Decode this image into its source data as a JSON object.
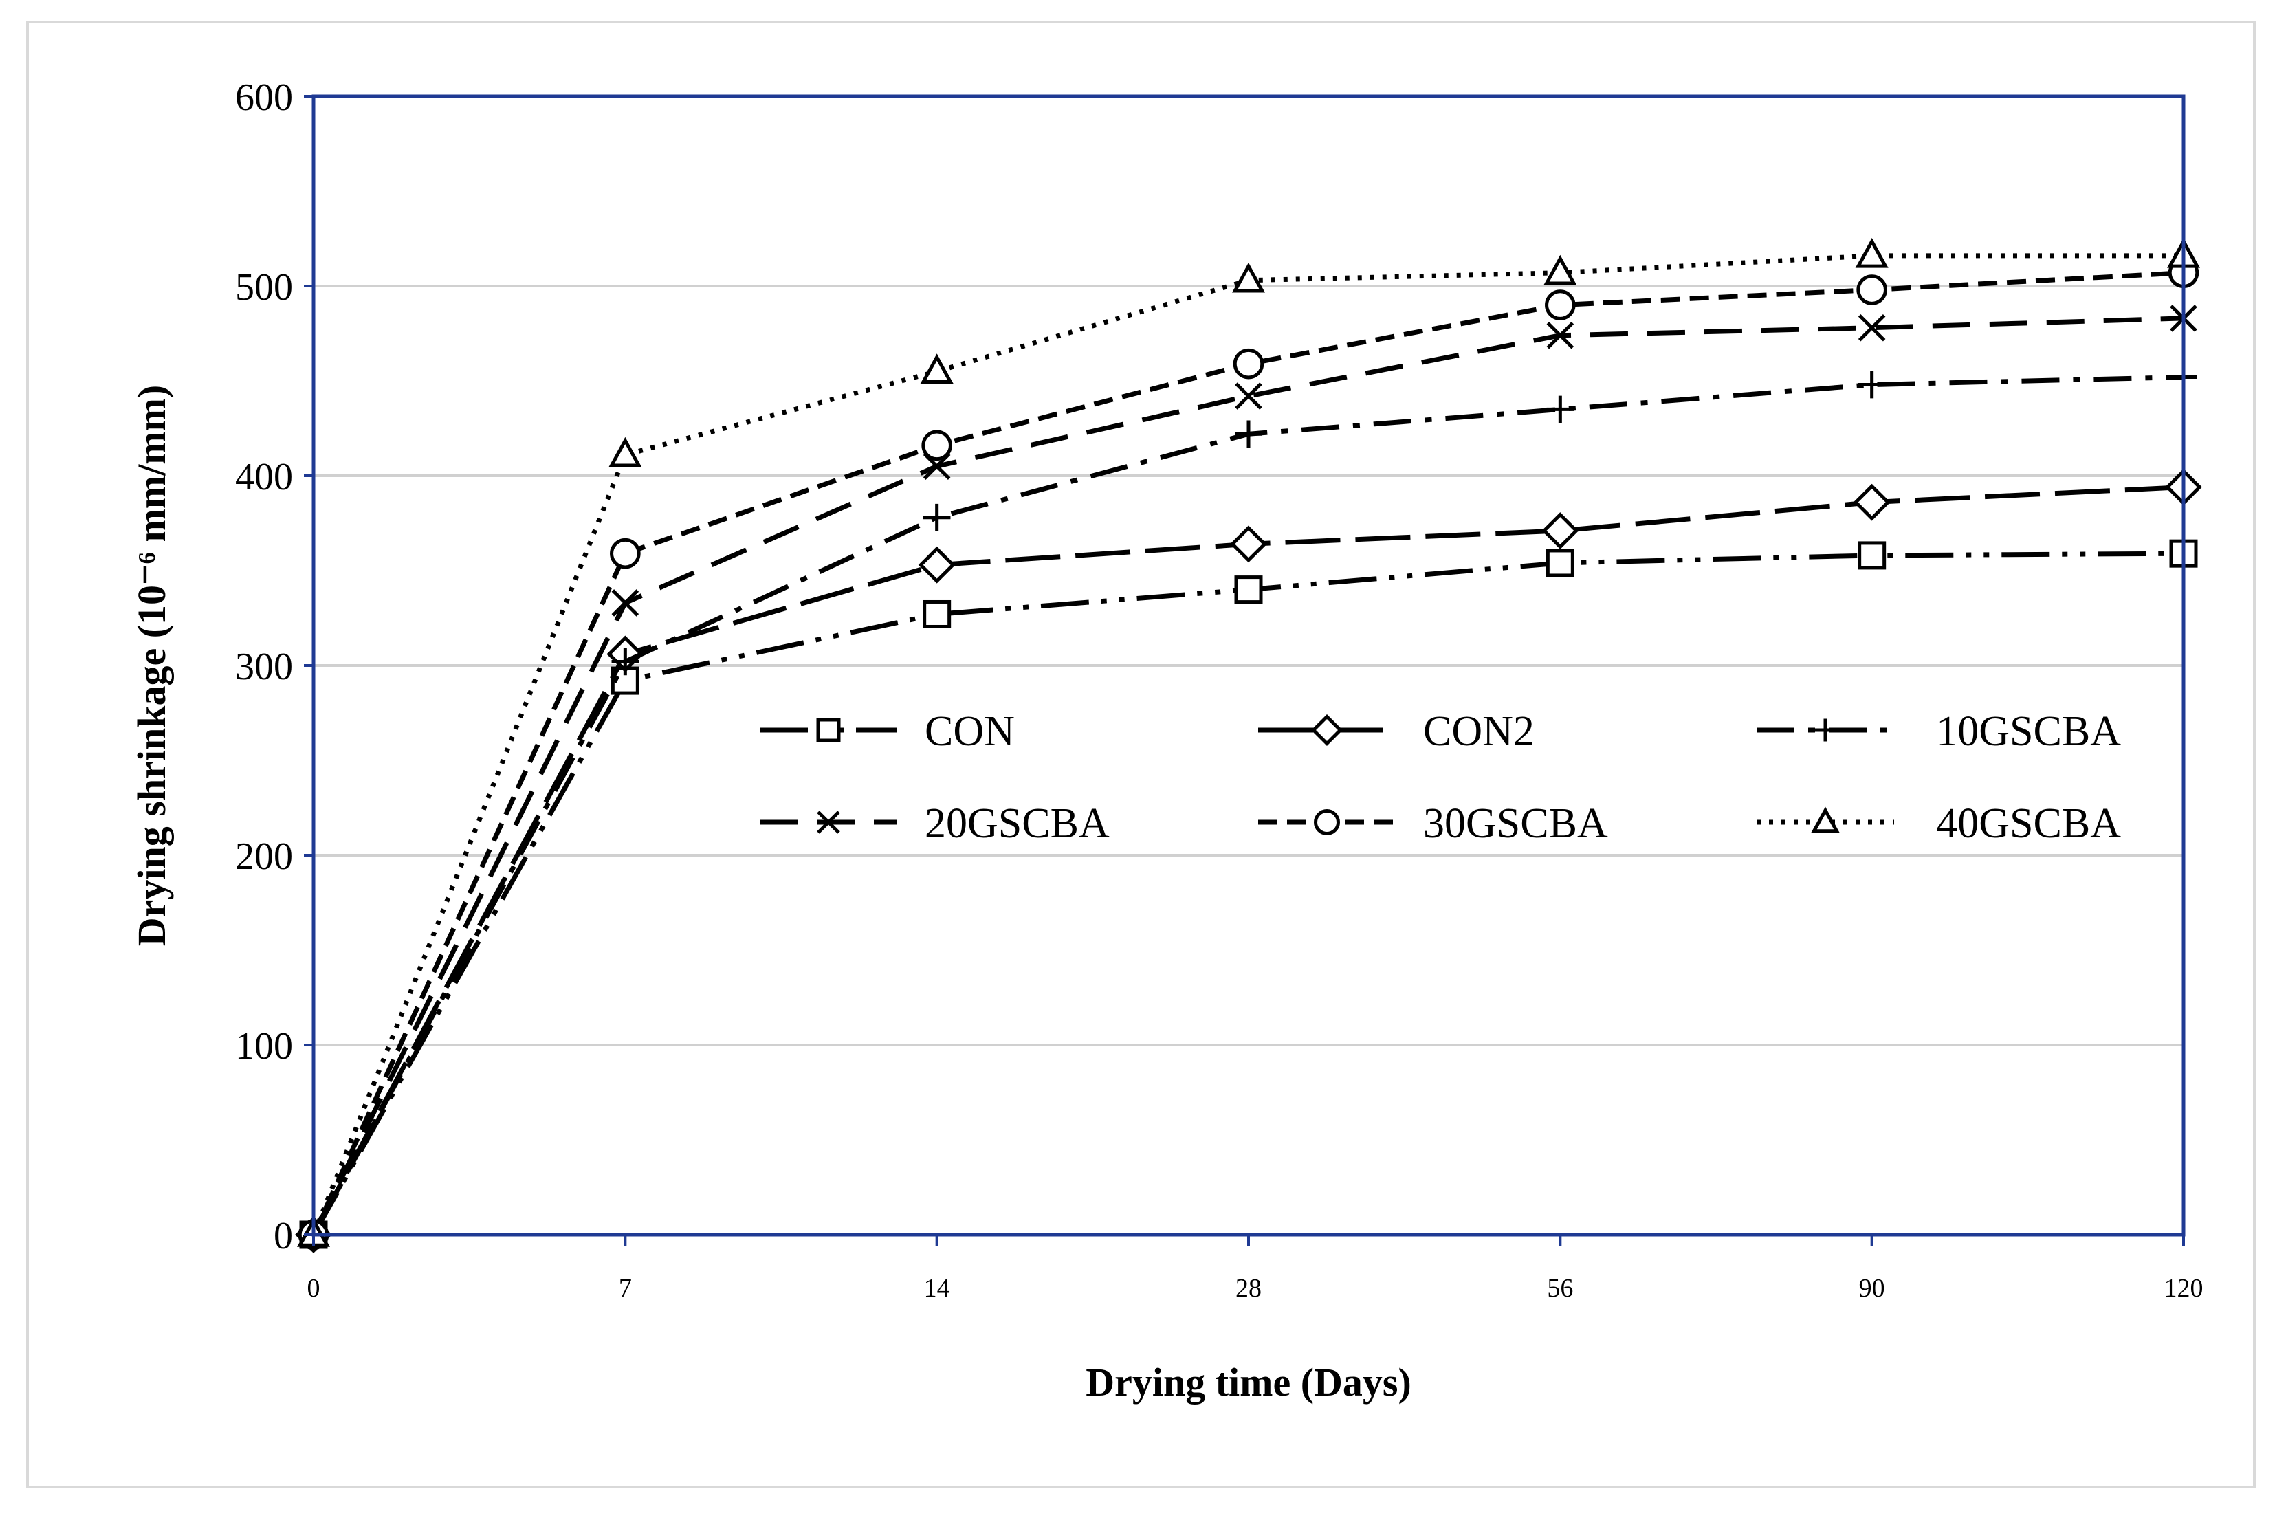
{
  "chart_data": {
    "type": "line",
    "title": "",
    "xlabel": "Drying time (Days)",
    "ylabel": "Drying shrinkage (10⁻⁶ mm/mm)",
    "categories": [
      "0",
      "7",
      "14",
      "28",
      "56",
      "90",
      "120"
    ],
    "ylim": [
      0,
      600
    ],
    "yticks": [
      "0",
      "100",
      "200",
      "300",
      "400",
      "500",
      "600"
    ],
    "grid": true,
    "legend_position": "center-right",
    "series": [
      {
        "name": "CON",
        "marker": "square",
        "dash": "dash-dot-dot",
        "values": [
          0,
          292,
          327,
          340,
          354,
          358,
          359
        ]
      },
      {
        "name": "CON2",
        "marker": "diamond",
        "dash": "long-dash",
        "values": [
          0,
          306,
          353,
          364,
          371,
          386,
          394
        ]
      },
      {
        "name": "10GSCBA",
        "marker": "plus",
        "dash": "dash-dot",
        "values": [
          0,
          302,
          378,
          422,
          435,
          448,
          452
        ]
      },
      {
        "name": "20GSCBA",
        "marker": "cross",
        "dash": "dash",
        "values": [
          0,
          333,
          405,
          442,
          474,
          478,
          483
        ]
      },
      {
        "name": "30GSCBA",
        "marker": "circle",
        "dash": "short-dash",
        "values": [
          0,
          359,
          416,
          459,
          490,
          498,
          507
        ]
      },
      {
        "name": "40GSCBA",
        "marker": "triangle",
        "dash": "dotted",
        "values": [
          0,
          411,
          455,
          503,
          507,
          516,
          516
        ]
      }
    ],
    "colors": {
      "plot_border": "#1f3a93",
      "gridline": "#d0d0d0",
      "series": "#000000"
    }
  }
}
